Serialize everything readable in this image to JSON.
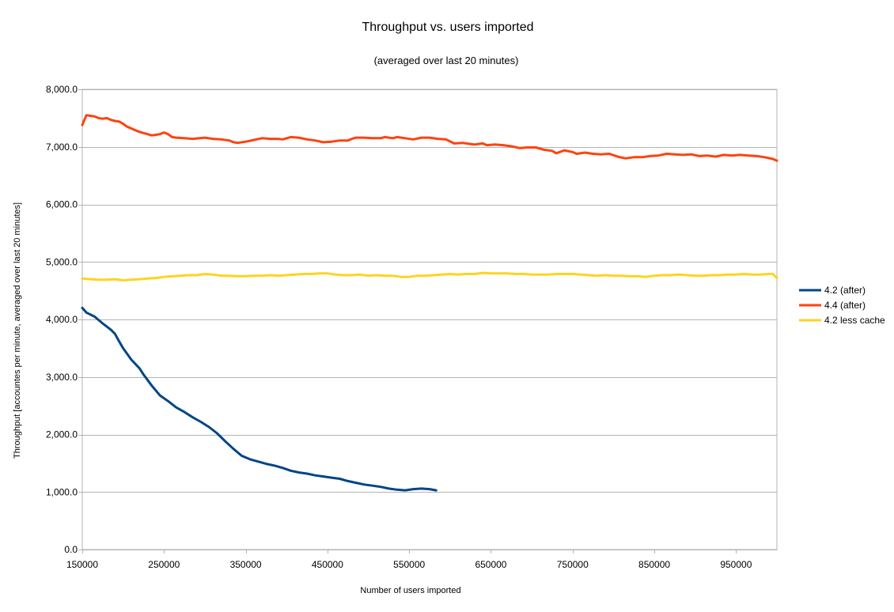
{
  "chart_data": {
    "type": "line",
    "title": "Throughput vs. users imported",
    "subtitle": "(averaged over last 20 minutes)",
    "xlabel": "Number of users imported",
    "ylabel": "Throughput [accountes per minute, averaged over last 20 minutes]",
    "xlim": [
      150000,
      1000000
    ],
    "ylim": [
      0,
      8000
    ],
    "x_ticks": [
      150000,
      250000,
      350000,
      450000,
      550000,
      650000,
      750000,
      850000,
      950000
    ],
    "x_tick_labels": [
      "150000",
      "250000",
      "350000",
      "450000",
      "550000",
      "650000",
      "750000",
      "850000",
      "950000"
    ],
    "y_ticks": [
      0,
      1000,
      2000,
      3000,
      4000,
      5000,
      6000,
      7000,
      8000
    ],
    "y_tick_labels": [
      "0.0",
      "1,000.0",
      "2,000.0",
      "3,000.0",
      "4,000.0",
      "5,000.0",
      "6,000.0",
      "7,000.0",
      "8,000.0"
    ],
    "grid": true,
    "legend_position": "right",
    "series": [
      {
        "name": "4.2 (after)",
        "color": "#004586",
        "points": [
          [
            150000,
            4200
          ],
          [
            155000,
            4120
          ],
          [
            165000,
            4050
          ],
          [
            175000,
            3930
          ],
          [
            185000,
            3820
          ],
          [
            190000,
            3750
          ],
          [
            195000,
            3620
          ],
          [
            200000,
            3500
          ],
          [
            210000,
            3300
          ],
          [
            220000,
            3150
          ],
          [
            225000,
            3040
          ],
          [
            235000,
            2850
          ],
          [
            245000,
            2680
          ],
          [
            255000,
            2580
          ],
          [
            265000,
            2470
          ],
          [
            275000,
            2390
          ],
          [
            285000,
            2300
          ],
          [
            295000,
            2220
          ],
          [
            305000,
            2130
          ],
          [
            315000,
            2020
          ],
          [
            325000,
            1880
          ],
          [
            335000,
            1750
          ],
          [
            345000,
            1630
          ],
          [
            355000,
            1570
          ],
          [
            365000,
            1530
          ],
          [
            375000,
            1490
          ],
          [
            385000,
            1460
          ],
          [
            395000,
            1420
          ],
          [
            405000,
            1370
          ],
          [
            415000,
            1340
          ],
          [
            425000,
            1320
          ],
          [
            435000,
            1290
          ],
          [
            445000,
            1270
          ],
          [
            455000,
            1250
          ],
          [
            465000,
            1230
          ],
          [
            475000,
            1190
          ],
          [
            485000,
            1160
          ],
          [
            495000,
            1130
          ],
          [
            505000,
            1110
          ],
          [
            515000,
            1090
          ],
          [
            525000,
            1060
          ],
          [
            535000,
            1040
          ],
          [
            545000,
            1030
          ],
          [
            555000,
            1050
          ],
          [
            565000,
            1060
          ],
          [
            575000,
            1050
          ],
          [
            583000,
            1030
          ]
        ]
      },
      {
        "name": "4.4 (after)",
        "color": "#ff420e",
        "points": [
          [
            150000,
            7380
          ],
          [
            155000,
            7550
          ],
          [
            160000,
            7540
          ],
          [
            165000,
            7530
          ],
          [
            170000,
            7500
          ],
          [
            175000,
            7490
          ],
          [
            180000,
            7500
          ],
          [
            185000,
            7470
          ],
          [
            190000,
            7450
          ],
          [
            195000,
            7440
          ],
          [
            200000,
            7400
          ],
          [
            205000,
            7350
          ],
          [
            210000,
            7320
          ],
          [
            215000,
            7290
          ],
          [
            220000,
            7260
          ],
          [
            225000,
            7240
          ],
          [
            230000,
            7220
          ],
          [
            235000,
            7200
          ],
          [
            240000,
            7210
          ],
          [
            245000,
            7220
          ],
          [
            250000,
            7250
          ],
          [
            255000,
            7220
          ],
          [
            260000,
            7170
          ],
          [
            265000,
            7160
          ],
          [
            275000,
            7150
          ],
          [
            285000,
            7140
          ],
          [
            300000,
            7160
          ],
          [
            310000,
            7140
          ],
          [
            320000,
            7130
          ],
          [
            330000,
            7110
          ],
          [
            335000,
            7080
          ],
          [
            340000,
            7070
          ],
          [
            350000,
            7090
          ],
          [
            360000,
            7120
          ],
          [
            370000,
            7150
          ],
          [
            380000,
            7140
          ],
          [
            390000,
            7140
          ],
          [
            395000,
            7130
          ],
          [
            405000,
            7170
          ],
          [
            415000,
            7160
          ],
          [
            425000,
            7130
          ],
          [
            435000,
            7110
          ],
          [
            445000,
            7080
          ],
          [
            455000,
            7090
          ],
          [
            465000,
            7110
          ],
          [
            475000,
            7110
          ],
          [
            480000,
            7140
          ],
          [
            485000,
            7160
          ],
          [
            495000,
            7160
          ],
          [
            505000,
            7150
          ],
          [
            515000,
            7150
          ],
          [
            520000,
            7170
          ],
          [
            530000,
            7150
          ],
          [
            535000,
            7170
          ],
          [
            545000,
            7150
          ],
          [
            555000,
            7130
          ],
          [
            565000,
            7160
          ],
          [
            575000,
            7160
          ],
          [
            585000,
            7140
          ],
          [
            595000,
            7130
          ],
          [
            605000,
            7060
          ],
          [
            615000,
            7070
          ],
          [
            625000,
            7050
          ],
          [
            630000,
            7040
          ],
          [
            640000,
            7060
          ],
          [
            645000,
            7030
          ],
          [
            655000,
            7040
          ],
          [
            665000,
            7030
          ],
          [
            675000,
            7010
          ],
          [
            685000,
            6980
          ],
          [
            695000,
            6990
          ],
          [
            705000,
            6990
          ],
          [
            715000,
            6950
          ],
          [
            725000,
            6930
          ],
          [
            730000,
            6890
          ],
          [
            740000,
            6940
          ],
          [
            750000,
            6910
          ],
          [
            755000,
            6880
          ],
          [
            765000,
            6900
          ],
          [
            775000,
            6880
          ],
          [
            785000,
            6870
          ],
          [
            795000,
            6880
          ],
          [
            805000,
            6830
          ],
          [
            815000,
            6800
          ],
          [
            825000,
            6820
          ],
          [
            835000,
            6820
          ],
          [
            845000,
            6840
          ],
          [
            855000,
            6850
          ],
          [
            865000,
            6880
          ],
          [
            875000,
            6870
          ],
          [
            885000,
            6860
          ],
          [
            895000,
            6870
          ],
          [
            905000,
            6840
          ],
          [
            915000,
            6850
          ],
          [
            925000,
            6830
          ],
          [
            935000,
            6860
          ],
          [
            945000,
            6850
          ],
          [
            955000,
            6860
          ],
          [
            965000,
            6850
          ],
          [
            975000,
            6840
          ],
          [
            985000,
            6820
          ],
          [
            995000,
            6790
          ],
          [
            1000000,
            6760
          ]
        ]
      },
      {
        "name": "4.2 less cache",
        "color": "#ffd320",
        "points": [
          [
            150000,
            4710
          ],
          [
            160000,
            4700
          ],
          [
            170000,
            4690
          ],
          [
            180000,
            4690
          ],
          [
            190000,
            4700
          ],
          [
            200000,
            4680
          ],
          [
            210000,
            4690
          ],
          [
            220000,
            4700
          ],
          [
            230000,
            4710
          ],
          [
            240000,
            4720
          ],
          [
            250000,
            4740
          ],
          [
            260000,
            4750
          ],
          [
            270000,
            4760
          ],
          [
            280000,
            4770
          ],
          [
            290000,
            4770
          ],
          [
            300000,
            4790
          ],
          [
            310000,
            4780
          ],
          [
            320000,
            4760
          ],
          [
            330000,
            4760
          ],
          [
            340000,
            4750
          ],
          [
            350000,
            4750
          ],
          [
            360000,
            4760
          ],
          [
            370000,
            4760
          ],
          [
            380000,
            4770
          ],
          [
            390000,
            4760
          ],
          [
            400000,
            4770
          ],
          [
            410000,
            4780
          ],
          [
            420000,
            4790
          ],
          [
            430000,
            4790
          ],
          [
            440000,
            4800
          ],
          [
            450000,
            4800
          ],
          [
            460000,
            4780
          ],
          [
            470000,
            4770
          ],
          [
            480000,
            4770
          ],
          [
            490000,
            4780
          ],
          [
            500000,
            4760
          ],
          [
            510000,
            4770
          ],
          [
            520000,
            4760
          ],
          [
            530000,
            4760
          ],
          [
            540000,
            4740
          ],
          [
            550000,
            4740
          ],
          [
            560000,
            4760
          ],
          [
            570000,
            4760
          ],
          [
            580000,
            4770
          ],
          [
            590000,
            4780
          ],
          [
            600000,
            4790
          ],
          [
            610000,
            4780
          ],
          [
            620000,
            4790
          ],
          [
            630000,
            4790
          ],
          [
            640000,
            4810
          ],
          [
            650000,
            4800
          ],
          [
            660000,
            4800
          ],
          [
            670000,
            4800
          ],
          [
            680000,
            4790
          ],
          [
            690000,
            4790
          ],
          [
            700000,
            4780
          ],
          [
            710000,
            4780
          ],
          [
            720000,
            4780
          ],
          [
            730000,
            4790
          ],
          [
            740000,
            4790
          ],
          [
            750000,
            4790
          ],
          [
            760000,
            4780
          ],
          [
            770000,
            4770
          ],
          [
            780000,
            4760
          ],
          [
            790000,
            4770
          ],
          [
            800000,
            4760
          ],
          [
            810000,
            4760
          ],
          [
            820000,
            4750
          ],
          [
            830000,
            4750
          ],
          [
            840000,
            4740
          ],
          [
            850000,
            4760
          ],
          [
            860000,
            4770
          ],
          [
            870000,
            4770
          ],
          [
            880000,
            4780
          ],
          [
            890000,
            4770
          ],
          [
            900000,
            4760
          ],
          [
            910000,
            4760
          ],
          [
            920000,
            4770
          ],
          [
            930000,
            4770
          ],
          [
            940000,
            4780
          ],
          [
            950000,
            4780
          ],
          [
            960000,
            4790
          ],
          [
            970000,
            4780
          ],
          [
            980000,
            4780
          ],
          [
            990000,
            4790
          ],
          [
            995000,
            4790
          ],
          [
            1000000,
            4720
          ]
        ]
      }
    ]
  }
}
